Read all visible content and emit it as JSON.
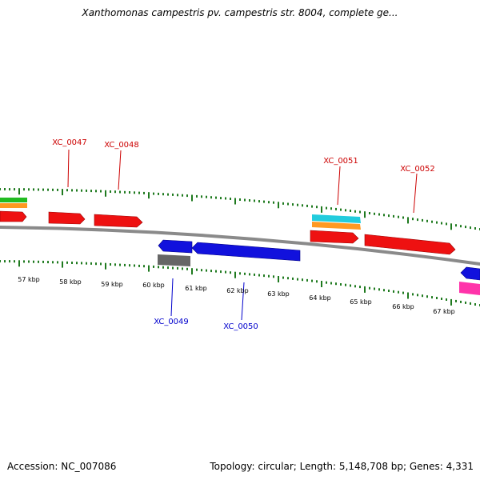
{
  "title": "Xanthomonas campestris pv. campestris str. 8004, complete ge...",
  "footer": {
    "accession": "Accession: NC_007086",
    "summary": "Topology: circular; Length: 5,148,708 bp; Genes: 4,331"
  },
  "colors": {
    "backbone": "#8a8a8a",
    "tick": "#1f7a1f",
    "forward_label": "#cc0000",
    "reverse_label": "#0000cc",
    "red": "#ee1111",
    "blue": "#1111dd",
    "orange": "#ff9922",
    "cyan": "#22ccdd",
    "green": "#22bb22",
    "gray": "#666666",
    "pink": "#ff33aa"
  },
  "scale_labels": [
    "57 kbp",
    "58 kbp",
    "59 kbp",
    "60 kbp",
    "61 kbp",
    "62 kbp",
    "63 kbp",
    "64 kbp",
    "65 kbp",
    "66 kbp",
    "67 kbp"
  ],
  "gene_labels": {
    "forward": [
      "XC_0047",
      "XC_0048",
      "XC_0051",
      "XC_0052"
    ],
    "reverse": [
      "XC_0049",
      "XC_0050"
    ]
  }
}
